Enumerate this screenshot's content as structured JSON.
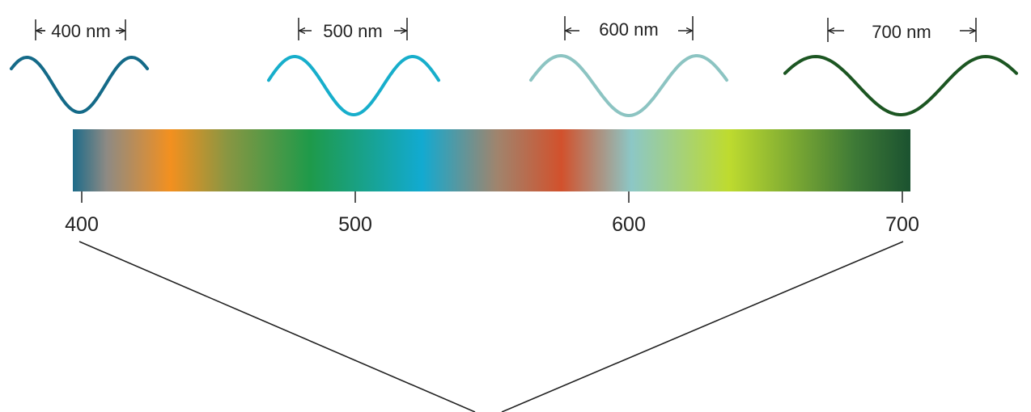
{
  "wavelength_labels": [
    "400 nm",
    "500 nm",
    "600 nm",
    "700 nm"
  ],
  "tick_labels": [
    "400",
    "500",
    "600",
    "700"
  ],
  "wave_colors": [
    "#146a88",
    "#17aecb",
    "#8cc4c2",
    "#1c5622"
  ],
  "spectrum": {
    "range": [
      400,
      700
    ],
    "stops": [
      {
        "wavelength": 400,
        "color": "#1d6b89"
      },
      {
        "wavelength": 412,
        "color": "#8d8a84"
      },
      {
        "wavelength": 435,
        "color": "#f3901f"
      },
      {
        "wavelength": 455,
        "color": "#8a9642"
      },
      {
        "wavelength": 485,
        "color": "#1e9a4a"
      },
      {
        "wavelength": 525,
        "color": "#12aad1"
      },
      {
        "wavelength": 552,
        "color": "#a0846d"
      },
      {
        "wavelength": 575,
        "color": "#d2512c"
      },
      {
        "wavelength": 600,
        "color": "#8cc7c6"
      },
      {
        "wavelength": 635,
        "color": "#bedb2f"
      },
      {
        "wavelength": 680,
        "color": "#3e7a36"
      },
      {
        "wavelength": 700,
        "color": "#1b5230"
      }
    ]
  }
}
